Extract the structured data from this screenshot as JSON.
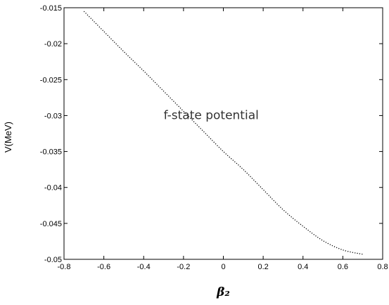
{
  "chart_data": {
    "type": "line",
    "title": "",
    "xlabel": "β₂",
    "ylabel": "V(MeV)",
    "xlim": [
      -0.8,
      0.8
    ],
    "ylim": [
      -0.05,
      -0.015
    ],
    "grid": false,
    "x_ticks": [
      {
        "value": -0.8,
        "label": "-0.8"
      },
      {
        "value": -0.6,
        "label": "-0.6"
      },
      {
        "value": -0.4,
        "label": "-0.4"
      },
      {
        "value": -0.2,
        "label": "-0.2"
      },
      {
        "value": 0.0,
        "label": "0"
      },
      {
        "value": 0.2,
        "label": "0.2"
      },
      {
        "value": 0.4,
        "label": "0.4"
      },
      {
        "value": 0.6,
        "label": "0.6"
      },
      {
        "value": 0.8,
        "label": "0.8"
      }
    ],
    "y_ticks": [
      {
        "value": -0.015,
        "label": "-0.015"
      },
      {
        "value": -0.02,
        "label": "-0.02"
      },
      {
        "value": -0.025,
        "label": "-0.025"
      },
      {
        "value": -0.03,
        "label": "-0.03"
      },
      {
        "value": -0.035,
        "label": "-0.035"
      },
      {
        "value": -0.04,
        "label": "-0.04"
      },
      {
        "value": -0.045,
        "label": "-0.045"
      },
      {
        "value": -0.05,
        "label": "-0.05"
      }
    ],
    "annotation": "f-state potential",
    "series": [
      {
        "style": "dotted",
        "color": "#000000",
        "x": [
          -0.7,
          -0.6,
          -0.5,
          -0.4,
          -0.3,
          -0.2,
          -0.1,
          0.0,
          0.1,
          0.2,
          0.3,
          0.4,
          0.5,
          0.6,
          0.7
        ],
        "y": [
          -0.0155,
          -0.0183,
          -0.0211,
          -0.0238,
          -0.0266,
          -0.0294,
          -0.0322,
          -0.035,
          -0.0375,
          -0.0403,
          -0.0431,
          -0.0454,
          -0.0474,
          -0.0487,
          -0.0493
        ]
      }
    ]
  }
}
